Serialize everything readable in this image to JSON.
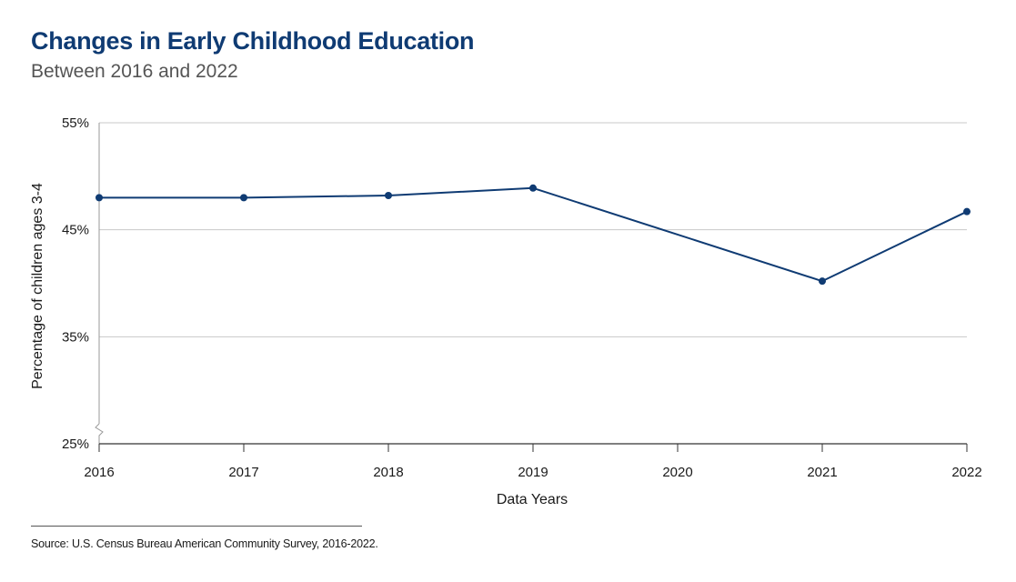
{
  "chart_data": {
    "type": "line",
    "title": "Changes in Early Childhood Education",
    "subtitle": "Between 2016 and 2022",
    "xlabel": "Data Years",
    "ylabel": "Percentage of children ages 3-4",
    "categories": [
      "2016",
      "2017",
      "2018",
      "2019",
      "2020",
      "2021",
      "2022"
    ],
    "series": [
      {
        "name": "Percentage of children ages 3-4",
        "x": [
          "2016",
          "2017",
          "2018",
          "2019",
          "2021",
          "2022"
        ],
        "values": [
          48,
          48,
          48.2,
          48.9,
          40.2,
          46.7
        ]
      }
    ],
    "yticks": [
      25,
      35,
      45,
      55
    ],
    "ytick_labels": [
      "25%",
      "35%",
      "45%",
      "55%"
    ],
    "ylim": [
      25,
      55
    ],
    "grid": true,
    "axis_break": true,
    "line_color": "#0f3b73"
  },
  "source": "Source: U.S. Census Bureau American Community Survey, 2016-2022."
}
